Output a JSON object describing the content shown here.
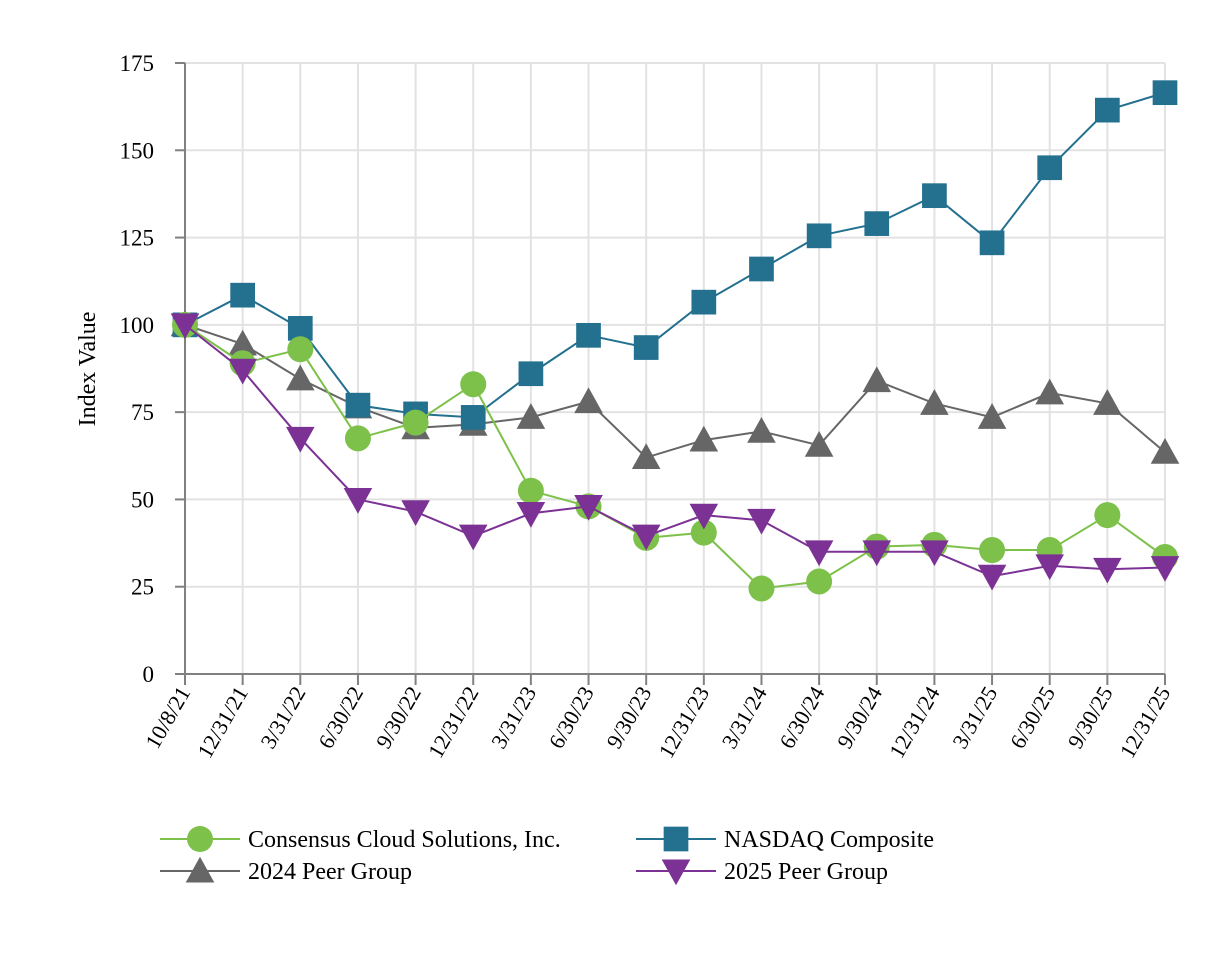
{
  "chart_data": {
    "type": "line",
    "title": "",
    "xlabel": "",
    "ylabel": "Index Value",
    "ylim": [
      0,
      175
    ],
    "yticks": [
      "0",
      "25",
      "50",
      "75",
      "100",
      "125",
      "150",
      "175"
    ],
    "grid": true,
    "legend_position": "bottom",
    "categories": [
      "10/8/21",
      "12/31/21",
      "3/31/22",
      "6/30/22",
      "9/30/22",
      "12/31/22",
      "3/31/23",
      "6/30/23",
      "9/30/23",
      "12/31/23",
      "3/31/24",
      "6/30/24",
      "9/30/24",
      "12/31/24",
      "3/31/25",
      "6/30/25",
      "9/30/25",
      "12/31/25"
    ],
    "series": [
      {
        "name": "Consensus Cloud Solutions, Inc.",
        "color": "#7dc14a",
        "marker": "circle",
        "values": [
          100,
          89,
          93,
          67.5,
          72,
          83,
          52.5,
          48,
          39,
          40.5,
          24.5,
          26.5,
          36.5,
          37,
          35.5,
          35.5,
          45.5,
          33.5
        ]
      },
      {
        "name": "NASDAQ Composite",
        "color": "#23708f",
        "marker": "square",
        "values": [
          100,
          108.5,
          99,
          77,
          74.5,
          73.5,
          86,
          97,
          93.5,
          106.5,
          116,
          125.5,
          129,
          137,
          123.5,
          145,
          161.5,
          166.5
        ]
      },
      {
        "name": "2024 Peer Group",
        "color": "#666666",
        "marker": "triangle-up",
        "values": [
          100,
          94.5,
          84.5,
          76.5,
          70.5,
          71.5,
          73.5,
          78,
          62,
          67,
          69.5,
          65.5,
          84,
          77.5,
          73.5,
          80.5,
          77.5,
          63.5
        ]
      },
      {
        "name": "2025 Peer Group",
        "color": "#7b3294",
        "marker": "triangle-down",
        "values": [
          100,
          87,
          67.5,
          50,
          46.5,
          39.5,
          46,
          48,
          39.5,
          45.5,
          44,
          35,
          35,
          35,
          28,
          31,
          30,
          30.5
        ]
      }
    ]
  }
}
